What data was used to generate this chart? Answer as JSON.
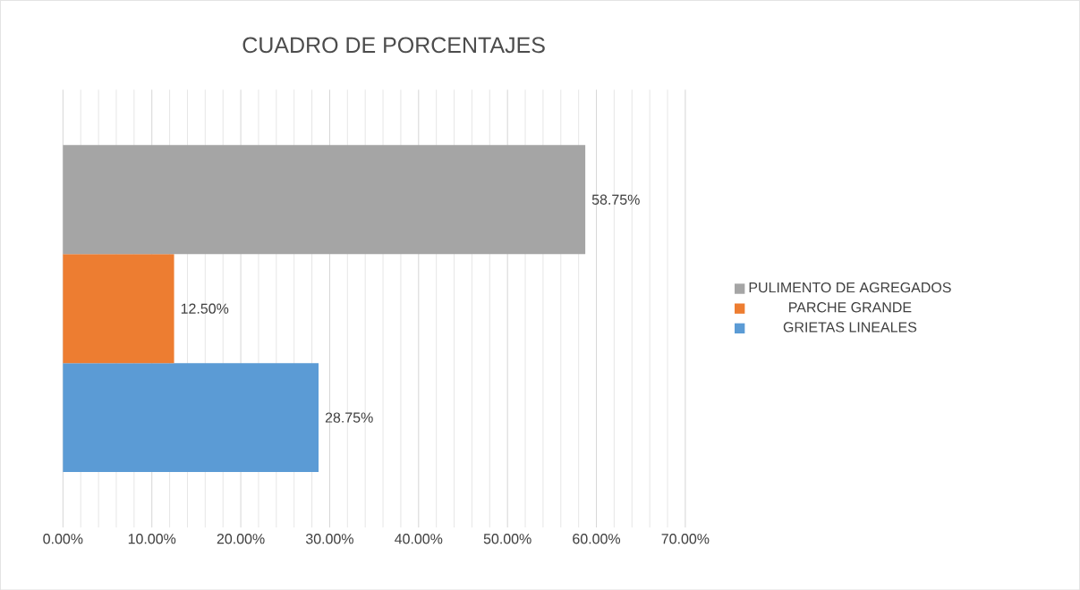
{
  "chart_data": {
    "type": "bar",
    "orientation": "horizontal",
    "title": "CUADRO DE PORCENTAJES",
    "categories": [
      null
    ],
    "series": [
      {
        "name": "GRIETAS LINEALES",
        "color": "#5b9bd5",
        "values": [
          28.75
        ],
        "value_labels": [
          "28.75%"
        ]
      },
      {
        "name": "PARCHE GRANDE",
        "color": "#ed7d31",
        "values": [
          12.5
        ],
        "value_labels": [
          "12.50%"
        ]
      },
      {
        "name": "PULIMENTO DE AGREGADOS",
        "color": "#a5a5a5",
        "values": [
          58.75
        ],
        "value_labels": [
          "58.75%"
        ]
      }
    ],
    "xlim": [
      0,
      70
    ],
    "xticks": [
      {
        "value": 0,
        "label": "0.00%"
      },
      {
        "value": 10,
        "label": "10.00%"
      },
      {
        "value": 20,
        "label": "20.00%"
      },
      {
        "value": 30,
        "label": "30.00%"
      },
      {
        "value": 40,
        "label": "40.00%"
      },
      {
        "value": 50,
        "label": "50.00%"
      },
      {
        "value": 60,
        "label": "60.00%"
      },
      {
        "value": 70,
        "label": "70.00%"
      }
    ],
    "grid": "x",
    "legend": "right"
  }
}
